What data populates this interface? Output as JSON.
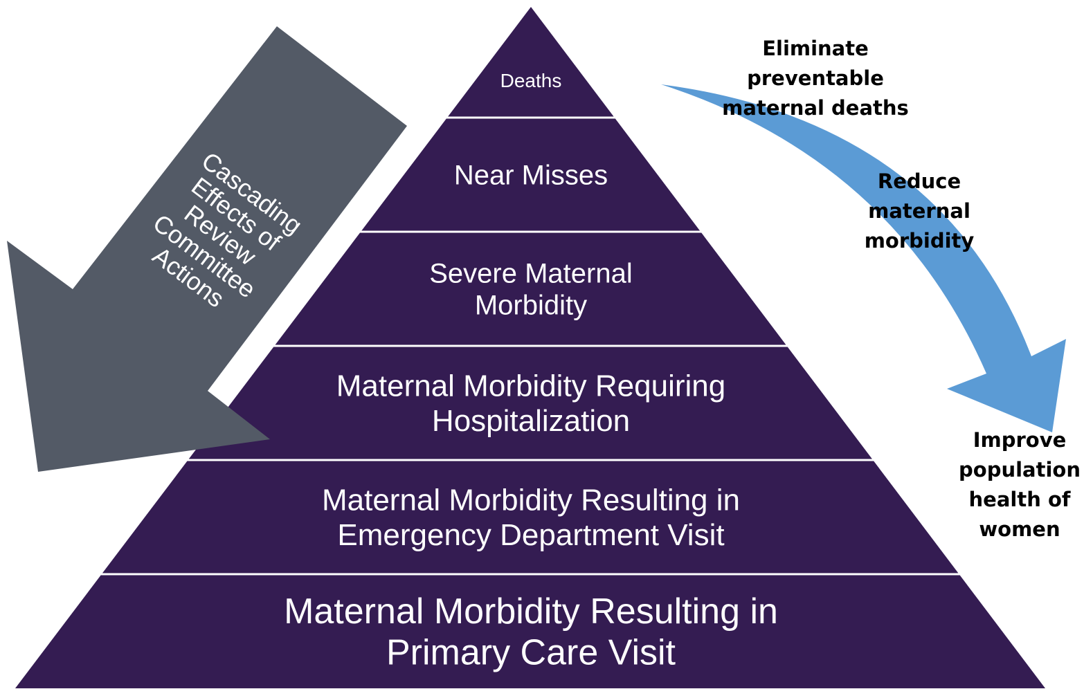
{
  "levels": [
    {
      "lines": [
        "Deaths"
      ]
    },
    {
      "lines": [
        "Near Misses"
      ]
    },
    {
      "lines": [
        "Severe Maternal",
        "Morbidity"
      ]
    },
    {
      "lines": [
        "Maternal Morbidity Requiring",
        "Hospitalization"
      ]
    },
    {
      "lines": [
        "Maternal Morbidity Resulting in",
        "Emergency Department Visit"
      ]
    },
    {
      "lines": [
        "Maternal Morbidity Resulting in",
        "Primary Care Visit"
      ]
    }
  ],
  "cascade_arrow": {
    "lines": [
      "Cascading",
      "Effects of",
      "Review",
      "Committee",
      "Actions"
    ]
  },
  "outcomes": [
    {
      "lines": [
        "Eliminate",
        "preventable",
        "maternal deaths"
      ]
    },
    {
      "lines": [
        "Reduce",
        "maternal",
        "morbidity"
      ]
    },
    {
      "lines": [
        "Improve",
        "population",
        "health of",
        "women"
      ]
    }
  ]
}
